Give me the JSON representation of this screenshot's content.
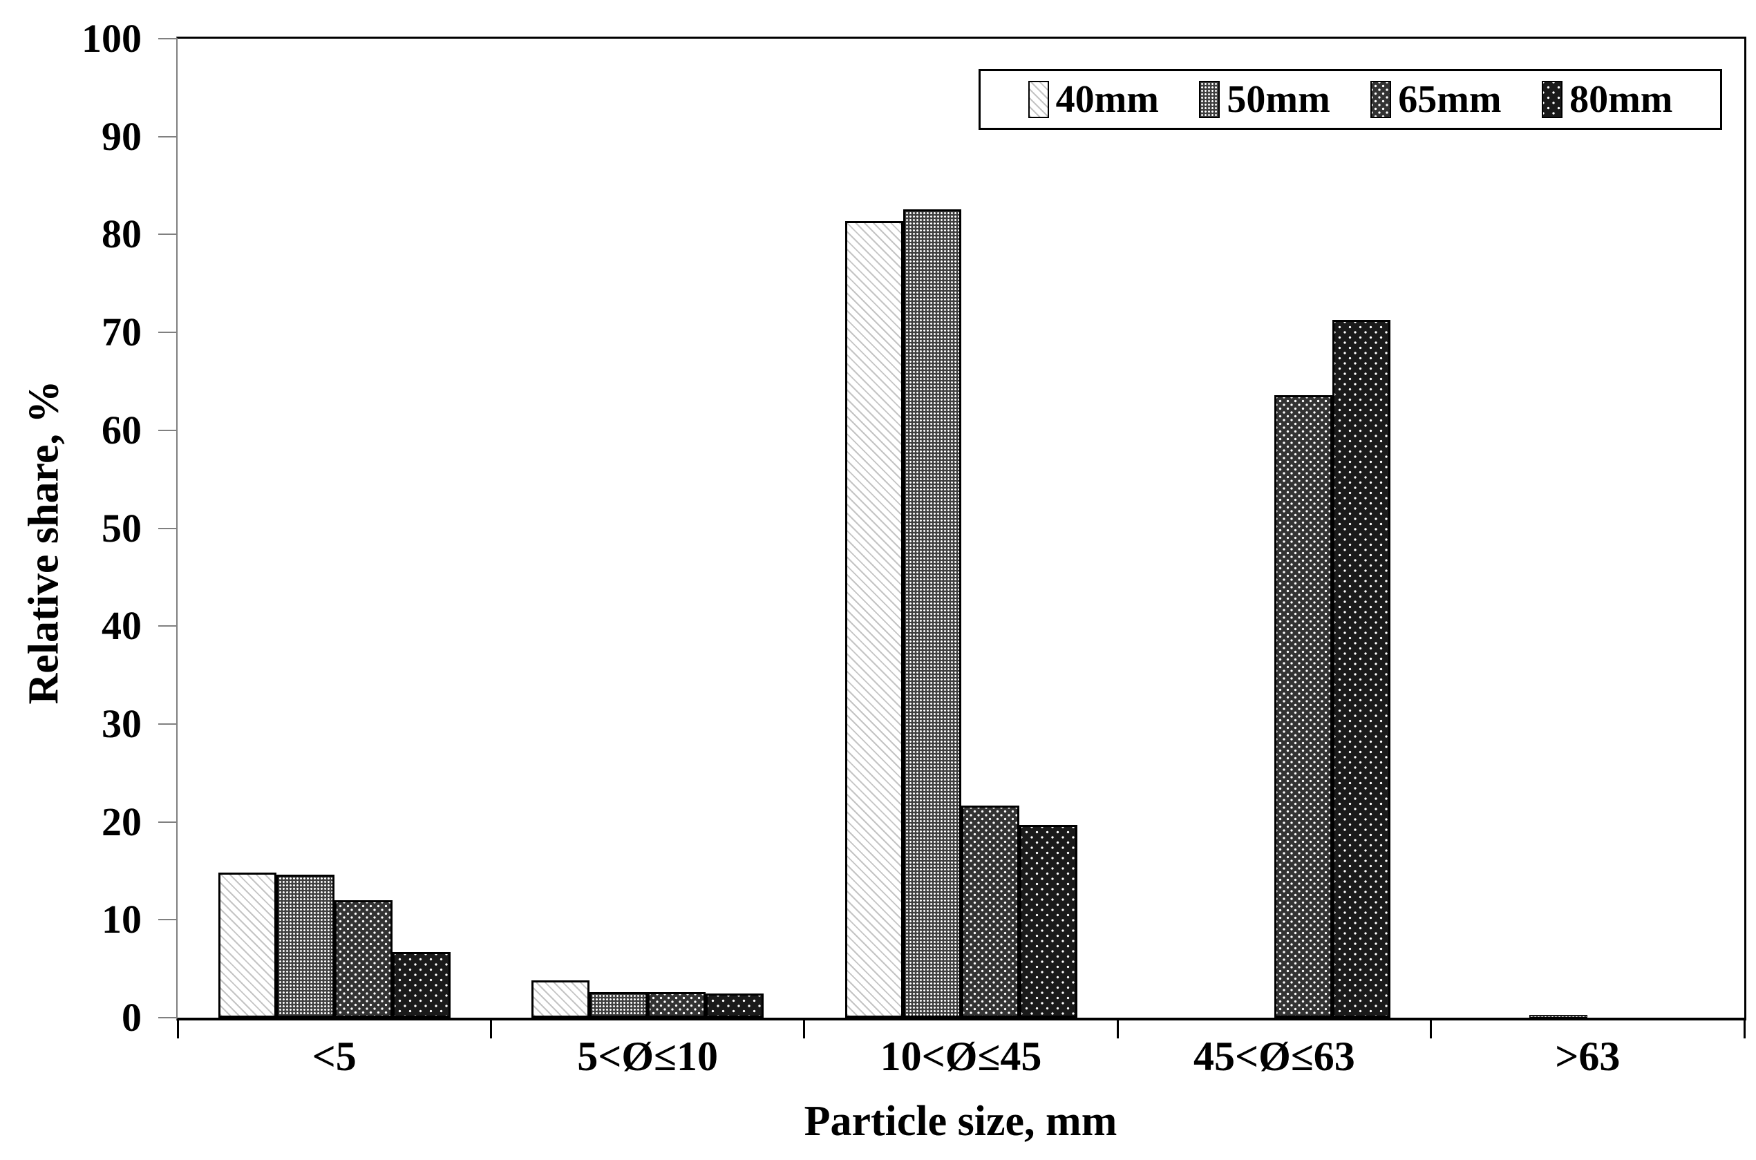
{
  "chart_data": {
    "type": "bar",
    "title": "",
    "xlabel": "Particle size, mm",
    "ylabel": "Relative share, %",
    "categories": [
      "<5",
      "5<Ø≤10",
      "10<Ø≤45",
      "45<Ø≤63",
      ">63"
    ],
    "series": [
      {
        "name": "40mm",
        "pattern": "diagonal-hatch",
        "bg": "#ffffff",
        "fg": "#c4c4c4",
        "values": [
          14.8,
          3.8,
          81.4,
          0,
          0
        ]
      },
      {
        "name": "50mm",
        "pattern": "fine-dot-grid",
        "bg": "#3f3f3f",
        "fg": "#ffffff",
        "values": [
          14.6,
          2.6,
          82.6,
          0,
          0.2
        ]
      },
      {
        "name": "65mm",
        "pattern": "medium-dots",
        "bg": "#333333",
        "fg": "#ffffff",
        "values": [
          12.0,
          2.6,
          21.7,
          63.6,
          0
        ]
      },
      {
        "name": "80mm",
        "pattern": "sparse-dots",
        "bg": "#1a1a1a",
        "fg": "#ffffff",
        "values": [
          6.7,
          2.5,
          19.7,
          71.3,
          0
        ]
      }
    ],
    "ylim": [
      0,
      100
    ],
    "y_ticks": [
      0,
      10,
      20,
      30,
      40,
      50,
      60,
      70,
      80,
      90,
      100
    ],
    "grid": false,
    "legend_position": "top-right",
    "axis_colors": {
      "y_axis": "#808080",
      "x_axis": "#000000",
      "border": "#000000"
    }
  }
}
